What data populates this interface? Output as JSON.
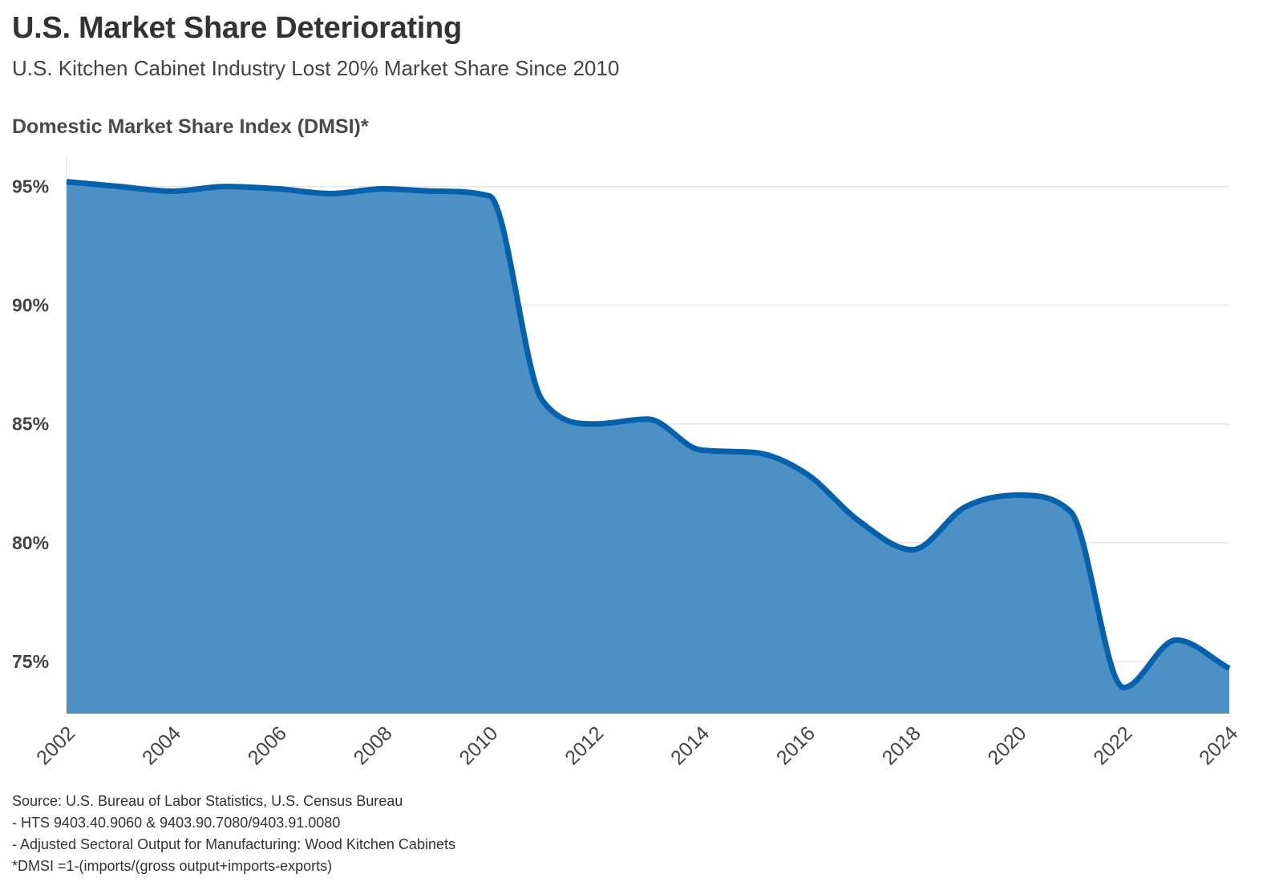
{
  "title": "U.S. Market Share Deteriorating",
  "subtitle": "U.S. Kitchen Cabinet Industry Lost 20% Market Share Since 2010",
  "chart_heading": "Domestic Market Share Index (DMSI)*",
  "colors": {
    "line": "#0561ac",
    "area": "#4d91c4",
    "grid": "#e6e6e6",
    "axis_text": "#444444"
  },
  "chart_data": {
    "type": "area",
    "title": "Domestic Market Share Index (DMSI)*",
    "xlabel": "",
    "ylabel": "",
    "x": [
      2002,
      2003,
      2004,
      2005,
      2006,
      2007,
      2008,
      2009,
      2010,
      2011,
      2012,
      2013,
      2014,
      2015,
      2016,
      2017,
      2018,
      2019,
      2020,
      2021,
      2022,
      2023,
      2024
    ],
    "values": [
      95.2,
      95.0,
      94.8,
      95.0,
      94.9,
      94.7,
      94.9,
      94.8,
      94.6,
      86.0,
      85.0,
      85.2,
      83.9,
      83.8,
      82.9,
      80.9,
      79.7,
      81.5,
      82.0,
      81.3,
      73.9,
      75.9,
      74.7
    ],
    "xlim": [
      2002,
      2024
    ],
    "ylim": [
      72.8,
      96.1
    ],
    "x_ticks": [
      "2002",
      "2004",
      "2006",
      "2008",
      "2010",
      "2012",
      "2014",
      "2016",
      "2018",
      "2020",
      "2022",
      "2024"
    ],
    "y_ticks": [
      {
        "value": 75,
        "label": "75%"
      },
      {
        "value": 80,
        "label": "80%"
      },
      {
        "value": 85,
        "label": "85%"
      },
      {
        "value": 90,
        "label": "90%"
      },
      {
        "value": 95,
        "label": "95%"
      }
    ],
    "grid": true
  },
  "notes": {
    "source": "Source: U.S. Bureau of Labor Statistics, U.S. Census Bureau",
    "line1": "- HTS 9403.40.9060 & 9403.90.7080/9403.91.0080",
    "line2": "- Adjusted Sectoral Output for Manufacturing: Wood Kitchen Cabinets",
    "formula": "*DMSI =1-(imports/(gross output+imports-exports)"
  }
}
